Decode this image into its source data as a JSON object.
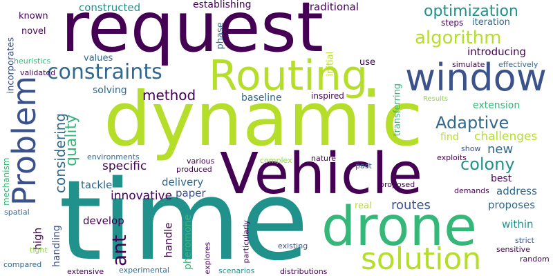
{
  "palette": {
    "dark_purple": "#440154",
    "indigo": "#3b528b",
    "blue": "#31688e",
    "teal": "#21918c",
    "green": "#35b779",
    "lime": "#b5de2b",
    "light_green": "#8fd744",
    "background": "#ffffff"
  },
  "words": [
    "request",
    "dynamic",
    "time",
    "Vehicle",
    "drone",
    "Routing",
    "window",
    "Problem",
    "solution",
    "constraints",
    "optimization",
    "algorithm",
    "Adaptive",
    "colony",
    "ant",
    "considering",
    "quality",
    "method",
    "introducing",
    "challenges",
    "new",
    "specific",
    "innovative",
    "tackle",
    "routes",
    "delivery",
    "paper",
    "develop",
    "proposes",
    "address",
    "handle",
    "pheromone",
    "within",
    "high",
    "handling",
    "known",
    "novel",
    "constructed",
    "establishing",
    "traditional",
    "steps",
    "iteration",
    "initial",
    "use",
    "phase",
    "values",
    "solving",
    "baseline",
    "inspired",
    "transferring",
    "simulate",
    "effectively",
    "extension",
    "find",
    "best",
    "exploits",
    "demands",
    "environments",
    "various",
    "produced",
    "complex",
    "nature",
    "past",
    "show",
    "proposed",
    "real",
    "mechanism",
    "incorporates",
    "heuristics",
    "validated",
    "spatial",
    "tight",
    "compared",
    "extensive",
    "experimental",
    "explores",
    "particularly",
    "scenarios",
    "distributions",
    "existing",
    "sensitive",
    "strict",
    "random",
    "Results"
  ]
}
